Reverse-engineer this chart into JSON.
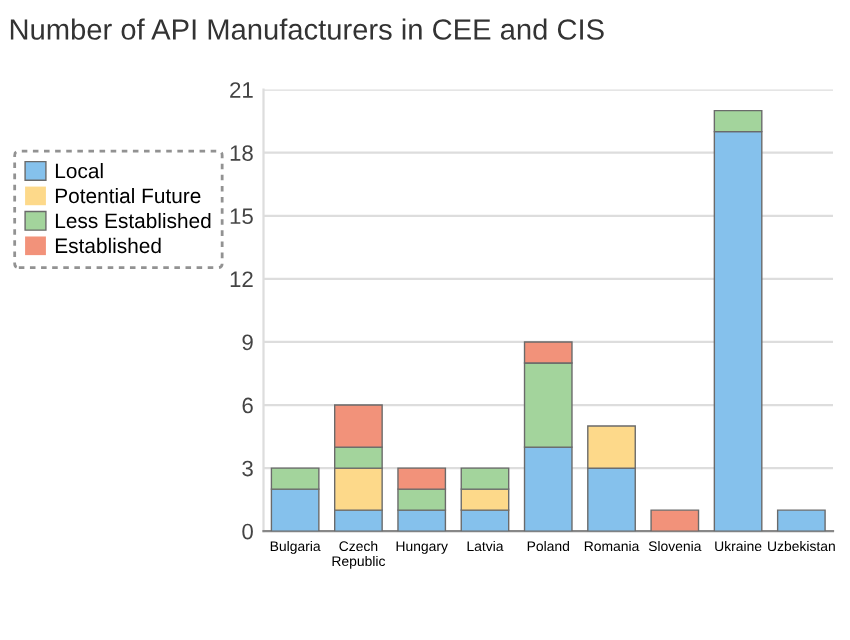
{
  "chart_data": {
    "type": "bar",
    "title": "Number of API Manufacturers in CEE and CIS",
    "stacked": true,
    "categories": [
      "Bulgaria",
      "Czech\nRepublic",
      "Hungary",
      "Latvia",
      "Poland",
      "Romania",
      "Slovenia",
      "Ukraine",
      "Uzbekistan"
    ],
    "series": [
      {
        "name": "Local",
        "color": "#85c1ec",
        "values": [
          2,
          1,
          1,
          1,
          4,
          3,
          0,
          19,
          1
        ]
      },
      {
        "name": "Potential Future",
        "color": "#fdd98a",
        "values": [
          0,
          2,
          0,
          1,
          0,
          2,
          0,
          0,
          0
        ]
      },
      {
        "name": "Less Established",
        "color": "#a3d49c",
        "values": [
          1,
          1,
          1,
          1,
          4,
          0,
          0,
          1,
          0
        ]
      },
      {
        "name": "Established",
        "color": "#f2927a",
        "values": [
          0,
          2,
          1,
          0,
          1,
          0,
          1,
          0,
          0
        ]
      }
    ],
    "ylim": [
      0,
      21
    ],
    "yticks": [
      0,
      3,
      6,
      9,
      12,
      15,
      18,
      21
    ],
    "grid": "y",
    "legend": "left"
  }
}
